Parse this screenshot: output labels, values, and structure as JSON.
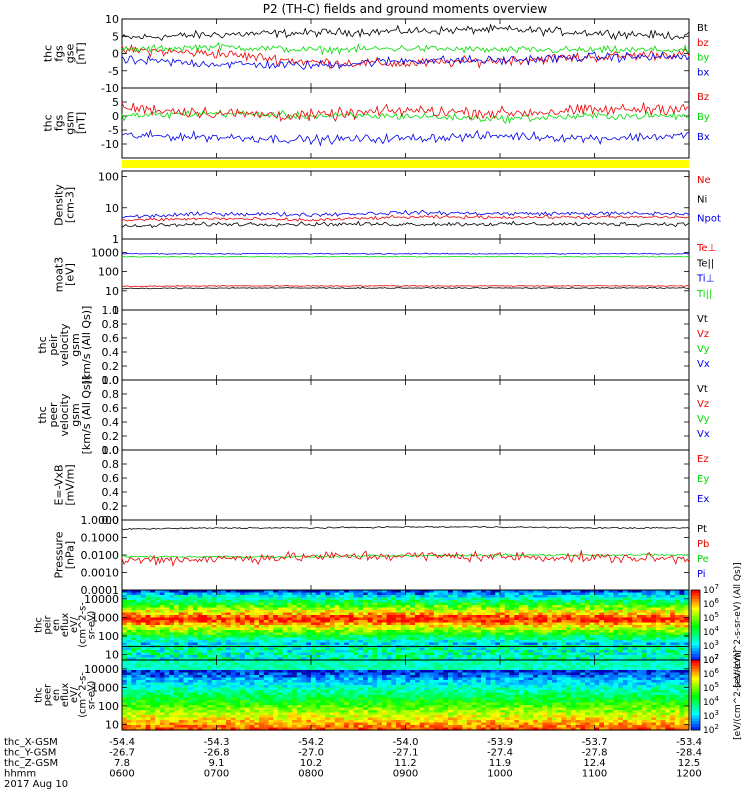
{
  "title": "P2 (TH-C) fields and ground moments overview",
  "colors": {
    "black": "#000000",
    "red": "#ee0000",
    "green": "#00dd00",
    "blue": "#0000ee",
    "yellow": "#ffff00"
  },
  "panels": [
    {
      "id": "fgs-gse",
      "ylabel": [
        "thc",
        "fgs",
        "gse",
        "[nT]"
      ],
      "ylim": [
        -10,
        10
      ],
      "ticks": [
        "10",
        "5",
        "0",
        "-5",
        "-10"
      ],
      "tick_values": [
        10,
        5,
        0,
        -5,
        -10
      ],
      "legend": [
        {
          "label": "Bt",
          "color": "black"
        },
        {
          "label": "bz",
          "color": "red"
        },
        {
          "label": "by",
          "color": "green"
        },
        {
          "label": "bx",
          "color": "blue"
        }
      ]
    },
    {
      "id": "fgs-gsm",
      "ylabel": [
        "thc",
        "fgs",
        "gsm",
        "[nT]"
      ],
      "ylim": [
        -15,
        10
      ],
      "ticks": [
        "5",
        "0",
        "-5",
        "-10"
      ],
      "tick_values": [
        5,
        0,
        -5,
        -10
      ],
      "legend": [
        {
          "label": "Bz",
          "color": "red"
        },
        {
          "label": "By",
          "color": "green"
        },
        {
          "label": "Bx",
          "color": "blue"
        }
      ]
    },
    {
      "id": "density",
      "ylabel": [
        "Density",
        "[cm-3]"
      ],
      "scale": "log",
      "ylim": [
        1,
        150
      ],
      "ticks": [
        "100",
        "10",
        "1"
      ],
      "tick_values": [
        100,
        10,
        1
      ],
      "legend": [
        {
          "label": "Ne",
          "color": "red"
        },
        {
          "label": "Ni",
          "color": "black"
        },
        {
          "label": "Npot",
          "color": "blue"
        }
      ]
    },
    {
      "id": "temperature",
      "ylabel": [
        "moat3",
        "[eV]"
      ],
      "scale": "log",
      "ylim": [
        1,
        5000
      ],
      "ticks": [
        "1000",
        "100",
        "10",
        "1"
      ],
      "tick_values": [
        1000,
        100,
        10,
        1
      ],
      "legend": [
        {
          "label": "Te⊥",
          "color": "red"
        },
        {
          "label": "Te||",
          "color": "black"
        },
        {
          "label": "Ti⊥",
          "color": "blue"
        },
        {
          "label": "Ti||",
          "color": "green"
        }
      ]
    },
    {
      "id": "peir-velocity",
      "ylabel": [
        "thc",
        "peir",
        "velocity",
        "gsm",
        "[km/s (All Qs)]"
      ],
      "ylim": [
        0,
        1
      ],
      "ticks": [
        "1.0",
        "0.8",
        "0.6",
        "0.4",
        "0.2",
        "0.0"
      ],
      "tick_values": [
        1,
        0.8,
        0.6,
        0.4,
        0.2,
        0
      ],
      "legend": [
        {
          "label": "Vt",
          "color": "black"
        },
        {
          "label": "Vz",
          "color": "red"
        },
        {
          "label": "Vy",
          "color": "green"
        },
        {
          "label": "Vx",
          "color": "blue"
        }
      ]
    },
    {
      "id": "peer-velocity",
      "ylabel": [
        "thc",
        "peer",
        "velocity",
        "gsm",
        "[km/s (All Qs)]"
      ],
      "ylim": [
        0,
        1
      ],
      "ticks": [
        "1.0",
        "0.8",
        "0.6",
        "0.4",
        "0.2",
        "0.0"
      ],
      "tick_values": [
        1,
        0.8,
        0.6,
        0.4,
        0.2,
        0
      ],
      "legend": [
        {
          "label": "Vt",
          "color": "black"
        },
        {
          "label": "Vz",
          "color": "red"
        },
        {
          "label": "Vy",
          "color": "green"
        },
        {
          "label": "Vx",
          "color": "blue"
        }
      ]
    },
    {
      "id": "efield",
      "ylabel": [
        "E=-VxB",
        "[mV/m]"
      ],
      "ylim": [
        0,
        1
      ],
      "ticks": [
        "1.0",
        "0.8",
        "0.6",
        "0.4",
        "0.2",
        "0.0"
      ],
      "tick_values": [
        1,
        0.8,
        0.6,
        0.4,
        0.2,
        0
      ],
      "legend": [
        {
          "label": "Ez",
          "color": "red"
        },
        {
          "label": "Ey",
          "color": "green"
        },
        {
          "label": "Ex",
          "color": "blue"
        }
      ]
    },
    {
      "id": "pressure",
      "ylabel": [
        "Pressure",
        "[nPa]"
      ],
      "scale": "log",
      "ylim": [
        0.0001,
        1
      ],
      "ticks": [
        "1.0000",
        "0.1000",
        "0.0100",
        "0.0010",
        "0.0001"
      ],
      "tick_values": [
        1,
        0.1,
        0.01,
        0.001,
        0.0001
      ],
      "legend": [
        {
          "label": "Pt",
          "color": "black"
        },
        {
          "label": "Pb",
          "color": "red"
        },
        {
          "label": "Pe",
          "color": "green"
        },
        {
          "label": "Pi",
          "color": "blue"
        }
      ]
    },
    {
      "id": "peir-eflux",
      "ylabel": [
        "thc",
        "peir",
        "en",
        "eflux",
        "eV/",
        "(cm^2-s-",
        "sr-eV)"
      ],
      "scale": "log",
      "ylim": [
        5,
        30000
      ],
      "ticks": [
        "10000",
        "1000",
        "100",
        "10"
      ],
      "tick_values": [
        10000,
        1000,
        100,
        10
      ],
      "spectrogram": "ion"
    },
    {
      "id": "peer-eflux",
      "ylabel": [
        "thc",
        "peer",
        "en",
        "eflux",
        "eV/",
        "(cm^2-s-",
        "sr-eV)"
      ],
      "scale": "log",
      "ylim": [
        5,
        30000
      ],
      "ticks": [
        "10000",
        "1000",
        "100",
        "10"
      ],
      "tick_values": [
        10000,
        1000,
        100,
        10
      ],
      "spectrogram": "electron"
    }
  ],
  "colorbar": {
    "label": "[eV/(cm^2-s-sr-eV)]",
    "label2": "[eV/(cm^2-s-sr-eV) (All Qs)]",
    "ticks": [
      "10^2",
      "10^3",
      "10^4",
      "10^5",
      "10^6",
      "10^7"
    ]
  },
  "xaxis": {
    "row_labels": [
      "thc_X-GSM",
      "thc_Y-GSM",
      "thc_Z-GSM",
      "hhmm",
      "2017 Aug 10"
    ],
    "ticks": [
      {
        "x": "-54.4",
        "y": "-26.7",
        "z": "7.8",
        "hhmm": "0600"
      },
      {
        "x": "-54.3",
        "y": "-26.8",
        "z": "9.1",
        "hhmm": "0700"
      },
      {
        "x": "-54.2",
        "y": "-27.0",
        "z": "10.2",
        "hhmm": "0800"
      },
      {
        "x": "-54.0",
        "y": "-27.1",
        "z": "11.2",
        "hhmm": "0900"
      },
      {
        "x": "-53.9",
        "y": "-27.4",
        "z": "11.9",
        "hhmm": "1000"
      },
      {
        "x": "-53.7",
        "y": "-27.8",
        "z": "12.4",
        "hhmm": "1100"
      },
      {
        "x": "-53.4",
        "y": "-28.4",
        "z": "12.5",
        "hhmm": "1200"
      }
    ]
  },
  "chart_data": {
    "type": "line",
    "title": "P2 (TH-C) fields and ground moments overview",
    "x": [
      "0600",
      "0700",
      "0800",
      "0900",
      "1000",
      "1100",
      "1200"
    ],
    "series": [
      {
        "name": "Bt",
        "values": [
          4.5,
          5.5,
          6,
          6.5,
          7,
          6,
          5
        ]
      },
      {
        "name": "bz",
        "values": [
          1,
          0,
          -2.5,
          -3,
          -2,
          -1,
          0
        ]
      },
      {
        "name": "by",
        "values": [
          1,
          2,
          1,
          1.5,
          1,
          1,
          1
        ]
      },
      {
        "name": "bx",
        "values": [
          -2,
          -3,
          -3.5,
          -2,
          -2,
          -1,
          -1
        ]
      },
      {
        "name": "Bz",
        "values": [
          3,
          1,
          0,
          2,
          1,
          2,
          3
        ]
      },
      {
        "name": "By",
        "values": [
          0,
          1,
          0,
          0,
          -1,
          0,
          0
        ]
      },
      {
        "name": "Bx",
        "values": [
          -7,
          -7.5,
          -8.5,
          -8,
          -7,
          -8,
          -7
        ]
      },
      {
        "name": "Ne",
        "values": [
          4,
          4.5,
          4,
          5,
          5,
          5,
          5
        ]
      },
      {
        "name": "Ni",
        "values": [
          2.5,
          3,
          3,
          3,
          3,
          3,
          3
        ]
      },
      {
        "name": "Npot",
        "values": [
          5,
          6.5,
          6,
          7,
          6.5,
          6.5,
          6.5
        ]
      },
      {
        "name": "Te⊥",
        "values": [
          17,
          18,
          18,
          18,
          18,
          18,
          18
        ]
      },
      {
        "name": "Te||",
        "values": [
          13,
          14,
          14,
          14,
          14,
          14,
          14
        ]
      },
      {
        "name": "Ti⊥",
        "values": [
          850,
          850,
          850,
          850,
          850,
          850,
          850
        ]
      },
      {
        "name": "Ti||",
        "values": [
          600,
          600,
          600,
          600,
          600,
          600,
          600
        ]
      },
      {
        "name": "Pt",
        "values": [
          0.3,
          0.35,
          0.35,
          0.4,
          0.4,
          0.35,
          0.35
        ]
      },
      {
        "name": "Pb",
        "values": [
          0.005,
          0.006,
          0.008,
          0.009,
          0.008,
          0.007,
          0.006
        ]
      },
      {
        "name": "Pe",
        "values": [
          0.008,
          0.008,
          0.008,
          0.009,
          0.01,
          0.01,
          0.01
        ]
      }
    ]
  }
}
